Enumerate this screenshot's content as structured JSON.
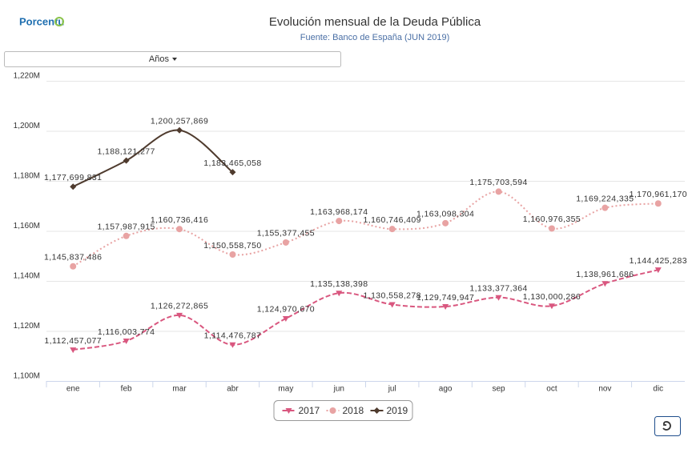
{
  "logo": "Porcentu",
  "dropdown": "Años",
  "chart_data": {
    "type": "line",
    "title": "Evolución mensual de la Deuda Pública",
    "subtitle": "Fuente: Banco de España (JUN 2019)",
    "categories": [
      "ene",
      "feb",
      "mar",
      "abr",
      "may",
      "jun",
      "jul",
      "ago",
      "sep",
      "oct",
      "nov",
      "dic"
    ],
    "ylim": [
      1100000000,
      1220000000
    ],
    "yticks": [
      {
        "value": 1100000000,
        "label": "1,100M"
      },
      {
        "value": 1120000000,
        "label": "1,120M"
      },
      {
        "value": 1140000000,
        "label": "1,140M"
      },
      {
        "value": 1160000000,
        "label": "1,160M"
      },
      {
        "value": 1180000000,
        "label": "1,180M"
      },
      {
        "value": 1200000000,
        "label": "1,200M"
      },
      {
        "value": 1220000000,
        "label": "1,220M"
      }
    ],
    "grid": true,
    "legend": "bottom",
    "series": [
      {
        "name": "2017",
        "color": "#d9577f",
        "dash": "dashed",
        "marker": "triangle-down",
        "values": [
          1112457077,
          1116003774,
          1126272865,
          1114476787,
          1124970670,
          1135138398,
          1130558278,
          1129749947,
          1133377364,
          1130000286,
          1138961686,
          1144425283
        ],
        "value_labels": [
          "1,112,457,077",
          "1,116,003,774",
          "1,126,272,865",
          "1,114,476,787",
          "1,124,970,670",
          "1,135,138,398",
          "1,130,558,278",
          "1,129,749,947",
          "1,133,377,364",
          "1,130,000,286",
          "1,138,961,686",
          "1,144,425,283"
        ]
      },
      {
        "name": "2018",
        "color": "#e8a3a3",
        "dash": "dotted",
        "marker": "circle",
        "values": [
          1145837486,
          1157987915,
          1160736416,
          1150558750,
          1155377455,
          1163968174,
          1160746409,
          1163098304,
          1175703594,
          1160976355,
          1169224335,
          1170961170
        ],
        "value_labels": [
          "1,145,837,486",
          "1,157,987,915",
          "1,160,736,416",
          "1,150,558,750",
          "1,155,377,455",
          "1,163,968,174",
          "1,160,746,409",
          "1,163,098,304",
          "1,175,703,594",
          "1,160,976,355",
          "1,169,224,335",
          "1,170,961,170"
        ]
      },
      {
        "name": "2019",
        "color": "#4f3b2e",
        "dash": "solid",
        "marker": "diamond",
        "values": [
          1177699831,
          1188121277,
          1200257869,
          1183465058,
          null,
          null,
          null,
          null,
          null,
          null,
          null,
          null
        ],
        "value_labels": [
          "1,177,699,831",
          "1,188,121,277",
          "1,200,257,869",
          "1,183,465,058",
          null,
          null,
          null,
          null,
          null,
          null,
          null,
          null
        ]
      }
    ]
  }
}
